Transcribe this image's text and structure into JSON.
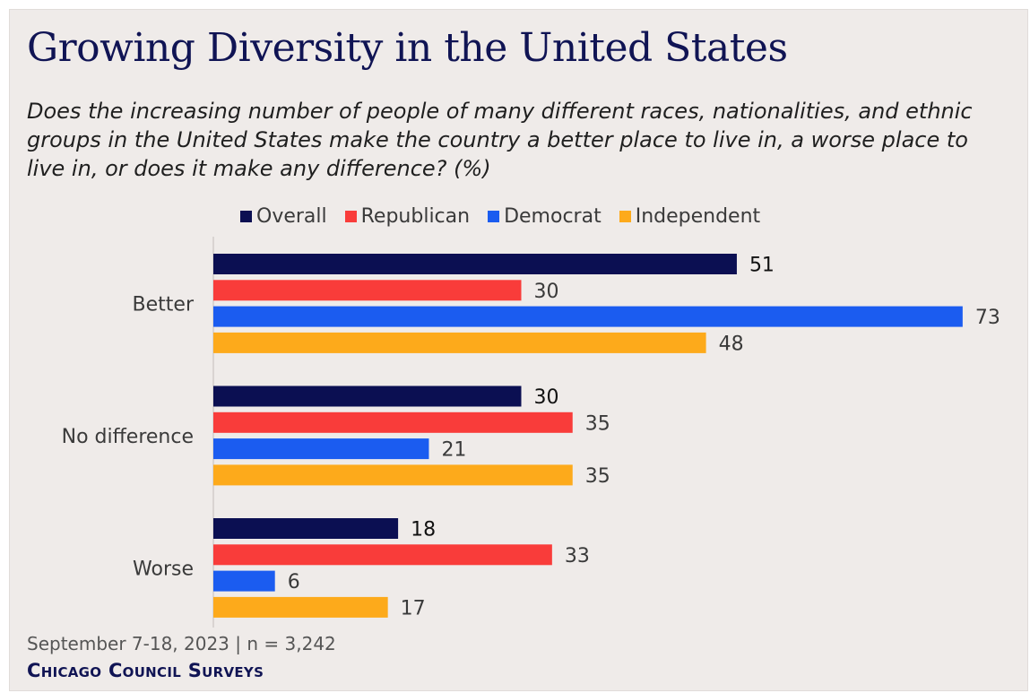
{
  "chart_data": {
    "type": "bar",
    "orientation": "horizontal",
    "title": "Growing Diversity in the United States",
    "subtitle": "Does the increasing number of people of many different races, nationalities, and ethnic groups in the United States make the country a better place to live in, a worse place to live in, or does it make any difference? (%)",
    "categories": [
      "Better",
      "No difference",
      "Worse"
    ],
    "series": [
      {
        "name": "Overall",
        "color": "#0b0f52",
        "values": [
          51,
          30,
          18
        ]
      },
      {
        "name": "Republican",
        "color": "#f93c3a",
        "values": [
          30,
          35,
          33
        ]
      },
      {
        "name": "Democrat",
        "color": "#1b5cf0",
        "values": [
          73,
          21,
          6
        ]
      },
      {
        "name": "Independent",
        "color": "#fdaa1b",
        "values": [
          48,
          35,
          17
        ]
      }
    ],
    "xlim": [
      0,
      73
    ],
    "grid": false,
    "legend_position": "top"
  },
  "footer": {
    "date_sample": "September 7-18, 2023 | n = 3,242",
    "source": "Chicago Council Surveys"
  }
}
